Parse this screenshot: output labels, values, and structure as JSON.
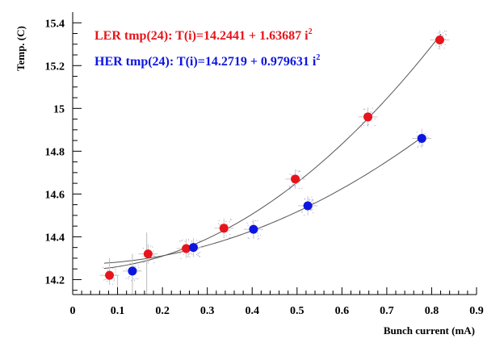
{
  "chart_data": {
    "type": "scatter",
    "xlabel": "Bunch current (mA)",
    "ylabel": "Temp. (C)",
    "xlim": [
      0,
      0.9
    ],
    "ylim": [
      14.13,
      15.45
    ],
    "x_ticks": [
      "0",
      "0.1",
      "0.2",
      "0.3",
      "0.4",
      "0.5",
      "0.6",
      "0.7",
      "0.8",
      "0.9"
    ],
    "y_ticks": [
      "14.2",
      "14.4",
      "14.6",
      "14.8",
      "15",
      "15.2",
      "15.4"
    ],
    "grid": false,
    "legend_placement": "top-left",
    "series": [
      {
        "name": "LER",
        "legend_main": "LER tmp(24): T(i)=14.2441 + 1.63687 i",
        "legend_sup": "2",
        "color": "#e8141b",
        "fit": {
          "a": 14.2441,
          "b": 1.63687
        },
        "x": [
          0.082,
          0.168,
          0.253,
          0.337,
          0.496,
          0.658,
          0.818
        ],
        "y": [
          14.22,
          14.32,
          14.345,
          14.44,
          14.67,
          14.96,
          15.32
        ]
      },
      {
        "name": "HER",
        "legend_main": "HER tmp(24): T(i)=14.2719 + 0.979631 i",
        "legend_sup": "2",
        "color": "#0d16e0",
        "fit": {
          "a": 14.2719,
          "b": 0.979631
        },
        "x": [
          0.133,
          0.269,
          0.403,
          0.524,
          0.778
        ],
        "y": [
          14.24,
          14.35,
          14.435,
          14.545,
          14.86
        ]
      }
    ]
  }
}
